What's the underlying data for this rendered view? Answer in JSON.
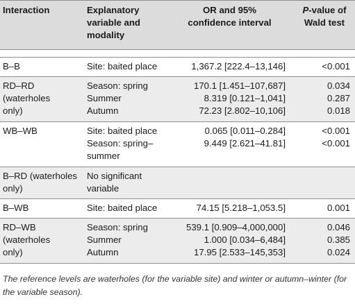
{
  "headers": {
    "interaction": "Interaction",
    "explanatory_1": "Explanatory",
    "explanatory_2": "variable and",
    "explanatory_3": "modality",
    "or_1": "OR and 95%",
    "or_2": "confidence interval",
    "p_1_italic": "P",
    "p_1_rest": "-value of",
    "p_2": "Wald test"
  },
  "rows": [
    {
      "interaction": [
        "B–B"
      ],
      "lines": [
        {
          "variable": "Site: baited place",
          "or": "1,367.2 [222.4–13,146]",
          "p": "<0.001"
        }
      ]
    },
    {
      "interaction": [
        "RD–RD",
        "(waterholes",
        "only)"
      ],
      "lines": [
        {
          "variable": "Season: spring",
          "or": "170.1 [1.451–107,687]",
          "p": "0.034"
        },
        {
          "variable": "Summer",
          "or": "8.319 [0.121–1,041]",
          "p": "0.287"
        },
        {
          "variable": "Autumn",
          "or": "72.23 [2.802–10,106]",
          "p": "0.018"
        }
      ]
    },
    {
      "interaction": [
        "WB–WB"
      ],
      "lines": [
        {
          "variable": "Site: baited place",
          "or": "0.065 [0.011–0.284]",
          "p": "<0.001"
        },
        {
          "variable": "Season: spring–",
          "or": "9.449 [2.621–41.81]",
          "p": "<0.001"
        },
        {
          "variable": "summer",
          "or": "",
          "p": ""
        }
      ]
    },
    {
      "interaction": [
        "B–RD (waterholes",
        "only)"
      ],
      "lines": [
        {
          "variable": "No significant",
          "or": "",
          "p": ""
        },
        {
          "variable": "variable",
          "or": "",
          "p": ""
        }
      ]
    },
    {
      "interaction": [
        "B–WB"
      ],
      "lines": [
        {
          "variable": "Site: baited place",
          "or": "74.15 [5.218–1,053.5]",
          "p": "0.001"
        }
      ]
    },
    {
      "interaction": [
        "RD–WB",
        "(waterholes",
        "only)"
      ],
      "lines": [
        {
          "variable": "Season: spring",
          "or": "539.1 [0.909–4,000,000]",
          "p": "0.046"
        },
        {
          "variable": "Summer",
          "or": "1.000 [0.034–6,484]",
          "p": "0.385"
        },
        {
          "variable": "Autumn",
          "or": "17.95 [2.533–145,353]",
          "p": "0.024"
        }
      ]
    }
  ],
  "footnote": "The reference levels are waterholes (for the variable site) and winter or autumn–winter (for the variable season)."
}
